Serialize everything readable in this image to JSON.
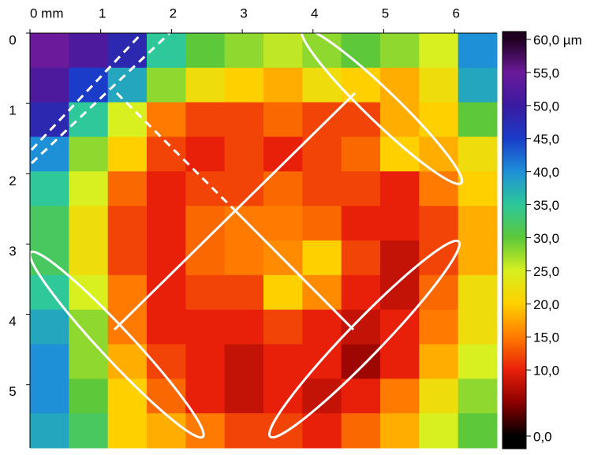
{
  "chart_data": {
    "type": "heatmap",
    "xlim": [
      0,
      6.6
    ],
    "ylim": [
      0,
      5.9
    ],
    "y_inverted": true,
    "xticks": [
      {
        "value": 0,
        "label": "0 mm"
      },
      1,
      2,
      3,
      4,
      5,
      6
    ],
    "yticks": [
      0,
      1,
      2,
      3,
      4,
      5
    ],
    "clim": [
      0,
      60
    ],
    "cticks": [
      {
        "value": 60,
        "label": "60,0 µm"
      },
      {
        "value": 55,
        "label": "55,0"
      },
      {
        "value": 50,
        "label": "50,0"
      },
      {
        "value": 45,
        "label": "45,0"
      },
      {
        "value": 40,
        "label": "40,0"
      },
      {
        "value": 35,
        "label": "35,0"
      },
      {
        "value": 30,
        "label": "30,0"
      },
      {
        "value": 25,
        "label": "25,0"
      },
      {
        "value": 20,
        "label": "20,0"
      },
      {
        "value": 15,
        "label": "15,0"
      },
      {
        "value": 10,
        "label": "10,0"
      },
      {
        "value": 0,
        "label": "0,0"
      }
    ],
    "colormap": [
      "#000000",
      "#8b0000",
      "#e8200a",
      "#ff7a00",
      "#ffd000",
      "#d8ef20",
      "#5cc83a",
      "#2ec89a",
      "#1e90d8",
      "#1a3cc8",
      "#3a1aa0",
      "#6a1a9a",
      "#200020"
    ],
    "z": [
      [
        55,
        52,
        48,
        35,
        30,
        28,
        26,
        28,
        30,
        28,
        25,
        40
      ],
      [
        52,
        45,
        38,
        28,
        22,
        20,
        18,
        22,
        20,
        18,
        22,
        38
      ],
      [
        48,
        35,
        25,
        15,
        12,
        12,
        14,
        12,
        12,
        18,
        20,
        30
      ],
      [
        40,
        28,
        20,
        12,
        10,
        12,
        10,
        12,
        14,
        20,
        18,
        22
      ],
      [
        35,
        25,
        14,
        10,
        12,
        12,
        14,
        12,
        12,
        10,
        15,
        20
      ],
      [
        32,
        22,
        12,
        10,
        14,
        15,
        15,
        14,
        10,
        10,
        12,
        18
      ],
      [
        32,
        22,
        12,
        10,
        14,
        15,
        16,
        20,
        12,
        8,
        12,
        18
      ],
      [
        35,
        25,
        15,
        10,
        12,
        12,
        20,
        16,
        10,
        8,
        14,
        22
      ],
      [
        38,
        28,
        15,
        10,
        10,
        10,
        12,
        10,
        8,
        10,
        15,
        22
      ],
      [
        40,
        28,
        18,
        12,
        10,
        8,
        10,
        10,
        6,
        10,
        18,
        25
      ],
      [
        40,
        30,
        20,
        14,
        10,
        8,
        10,
        8,
        10,
        15,
        22,
        28
      ],
      [
        38,
        32,
        20,
        18,
        15,
        12,
        12,
        10,
        14,
        18,
        25,
        30
      ]
    ]
  }
}
